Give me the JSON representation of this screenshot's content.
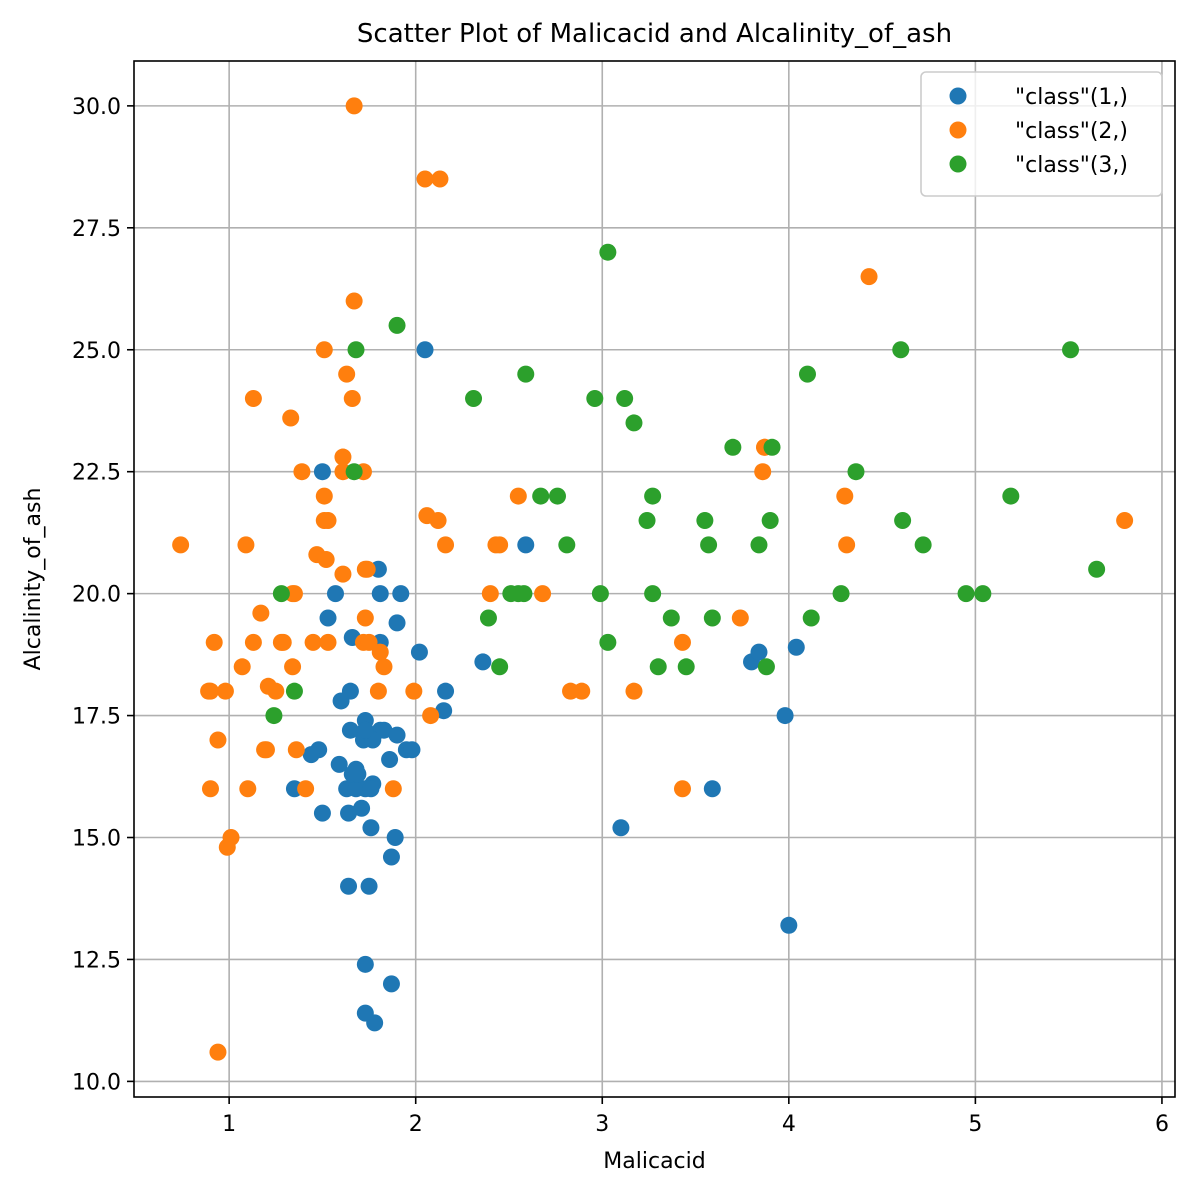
{
  "chart_data": {
    "type": "scatter",
    "title": "Scatter Plot of Malicacid and Alcalinity_of_ash",
    "xlabel": "Malicacid",
    "ylabel": "Alcalinity_of_ash",
    "xlim": [
      0.49,
      6.07
    ],
    "ylim": [
      9.68,
      30.92
    ],
    "xticks": [
      1,
      2,
      3,
      4,
      5,
      6
    ],
    "xtick_labels": [
      "1",
      "2",
      "3",
      "4",
      "5",
      "6"
    ],
    "yticks": [
      10.0,
      12.5,
      15.0,
      17.5,
      20.0,
      22.5,
      25.0,
      27.5,
      30.0
    ],
    "ytick_labels": [
      "10.0",
      "12.5",
      "15.0",
      "17.5",
      "20.0",
      "22.5",
      "25.0",
      "27.5",
      "30.0"
    ],
    "grid": true,
    "legend_position": "top-right",
    "series": [
      {
        "name": "\"class\"(1,)",
        "color": "#1f77b4",
        "points": [
          [
            1.71,
            15.6
          ],
          [
            1.78,
            11.2
          ],
          [
            2.36,
            18.6
          ],
          [
            1.95,
            16.8
          ],
          [
            2.59,
            21.0
          ],
          [
            1.76,
            15.2
          ],
          [
            1.87,
            14.6
          ],
          [
            2.15,
            17.6
          ],
          [
            1.64,
            14.0
          ],
          [
            1.35,
            16.0
          ],
          [
            2.16,
            18.0
          ],
          [
            1.48,
            16.8
          ],
          [
            1.73,
            16.0
          ],
          [
            1.73,
            11.4
          ],
          [
            1.87,
            12.0
          ],
          [
            1.81,
            17.2
          ],
          [
            1.92,
            20.0
          ],
          [
            1.57,
            20.0
          ],
          [
            1.59,
            16.5
          ],
          [
            3.1,
            15.2
          ],
          [
            1.63,
            16.0
          ],
          [
            3.8,
            18.6
          ],
          [
            1.86,
            16.6
          ],
          [
            1.6,
            17.8
          ],
          [
            1.81,
            20.0
          ],
          [
            2.05,
            25.0
          ],
          [
            1.77,
            16.1
          ],
          [
            1.72,
            17.0
          ],
          [
            1.9,
            19.4
          ],
          [
            1.68,
            16.0
          ],
          [
            1.5,
            15.5
          ],
          [
            1.66,
            16.3
          ],
          [
            1.83,
            17.2
          ],
          [
            1.53,
            19.5
          ],
          [
            1.8,
            20.5
          ],
          [
            1.81,
            19.0
          ],
          [
            1.64,
            15.5
          ],
          [
            1.65,
            18.0
          ],
          [
            1.5,
            22.5
          ],
          [
            3.59,
            16.0
          ],
          [
            1.73,
            12.4
          ],
          [
            1.65,
            17.2
          ],
          [
            3.98,
            17.5
          ],
          [
            1.77,
            17.0
          ],
          [
            4.04,
            18.9
          ],
          [
            3.84,
            18.8
          ],
          [
            1.89,
            15.0
          ],
          [
            1.68,
            16.4
          ],
          [
            1.75,
            14.0
          ],
          [
            1.73,
            17.4
          ],
          [
            1.9,
            17.1
          ],
          [
            1.73,
            17.2
          ],
          [
            1.66,
            19.1
          ],
          [
            1.76,
            16.0
          ],
          [
            1.98,
            16.8
          ],
          [
            2.02,
            18.8
          ],
          [
            1.44,
            16.7
          ],
          [
            1.69,
            16.3
          ],
          [
            4.0,
            13.2
          ]
        ]
      },
      {
        "name": "\"class\"(2,)",
        "color": "#ff7f0e",
        "points": [
          [
            0.94,
            10.6
          ],
          [
            1.1,
            16.0
          ],
          [
            1.36,
            16.8
          ],
          [
            1.25,
            18.0
          ],
          [
            1.13,
            19.0
          ],
          [
            1.45,
            19.0
          ],
          [
            1.21,
            18.1
          ],
          [
            1.01,
            15.0
          ],
          [
            1.17,
            19.6
          ],
          [
            0.94,
            17.0
          ],
          [
            1.19,
            16.8
          ],
          [
            1.61,
            20.4
          ],
          [
            1.51,
            25.0
          ],
          [
            1.66,
            24.0
          ],
          [
            1.67,
            30.0
          ],
          [
            1.09,
            21.0
          ],
          [
            1.88,
            16.0
          ],
          [
            0.9,
            18.0
          ],
          [
            2.89,
            18.0
          ],
          [
            0.99,
            14.8
          ],
          [
            3.87,
            23.0
          ],
          [
            0.92,
            19.0
          ],
          [
            1.81,
            18.8
          ],
          [
            1.13,
            24.0
          ],
          [
            3.86,
            22.5
          ],
          [
            0.89,
            18.0
          ],
          [
            0.98,
            18.0
          ],
          [
            1.61,
            22.8
          ],
          [
            1.67,
            26.0
          ],
          [
            2.06,
            21.6
          ],
          [
            1.33,
            23.6
          ],
          [
            1.83,
            18.5
          ],
          [
            1.51,
            22.0
          ],
          [
            1.53,
            21.5
          ],
          [
            1.8,
            18.0
          ],
          [
            1.28,
            19.0
          ],
          [
            1.07,
            18.5
          ],
          [
            3.43,
            19.0
          ],
          [
            1.29,
            19.0
          ],
          [
            1.63,
            24.5
          ],
          [
            3.74,
            19.5
          ],
          [
            2.43,
            21.0
          ],
          [
            2.68,
            20.0
          ],
          [
            0.74,
            21.0
          ],
          [
            1.39,
            22.5
          ],
          [
            1.51,
            21.5
          ],
          [
            1.47,
            20.8
          ],
          [
            1.73,
            20.5
          ],
          [
            1.61,
            22.5
          ],
          [
            1.34,
            20.0
          ],
          [
            1.41,
            16.0
          ],
          [
            1.73,
            19.5
          ],
          [
            2.55,
            22.0
          ],
          [
            3.43,
            16.0
          ],
          [
            1.72,
            22.5
          ],
          [
            2.08,
            17.5
          ],
          [
            3.17,
            18.0
          ],
          [
            1.72,
            19.0
          ],
          [
            2.13,
            28.5
          ],
          [
            1.52,
            20.7
          ],
          [
            1.34,
            18.5
          ],
          [
            0.9,
            16.0
          ],
          [
            2.05,
            28.5
          ],
          [
            1.53,
            19.0
          ],
          [
            2.16,
            21.0
          ],
          [
            2.83,
            18.0
          ],
          [
            1.99,
            18.0
          ],
          [
            1.35,
            20.0
          ],
          [
            3.87,
            23.0
          ],
          [
            1.74,
            20.5
          ],
          [
            4.43,
            26.5
          ],
          [
            4.3,
            22.0
          ],
          [
            2.4,
            20.0
          ],
          [
            2.12,
            21.5
          ],
          [
            1.2,
            16.8
          ],
          [
            2.45,
            21.0
          ],
          [
            5.8,
            21.5
          ],
          [
            1.75,
            19.0
          ],
          [
            4.31,
            21.0
          ]
        ]
      },
      {
        "name": "\"class\"(3,)",
        "color": "#2ca02c",
        "points": [
          [
            2.59,
            24.5
          ],
          [
            3.3,
            18.5
          ],
          [
            1.67,
            22.5
          ],
          [
            5.04,
            20.0
          ],
          [
            5.51,
            25.0
          ],
          [
            3.59,
            19.5
          ],
          [
            2.58,
            20.0
          ],
          [
            4.6,
            25.0
          ],
          [
            3.03,
            27.0
          ],
          [
            2.39,
            19.5
          ],
          [
            2.51,
            20.0
          ],
          [
            3.7,
            23.0
          ],
          [
            4.72,
            21.0
          ],
          [
            3.17,
            23.5
          ],
          [
            3.12,
            24.0
          ],
          [
            4.61,
            21.5
          ],
          [
            3.24,
            21.5
          ],
          [
            3.9,
            21.5
          ],
          [
            3.91,
            23.0
          ],
          [
            4.28,
            20.0
          ],
          [
            2.96,
            24.0
          ],
          [
            2.81,
            21.0
          ],
          [
            2.76,
            22.0
          ],
          [
            3.84,
            21.0
          ],
          [
            3.57,
            21.0
          ],
          [
            3.37,
            19.5
          ],
          [
            4.12,
            19.5
          ],
          [
            1.68,
            25.0
          ],
          [
            1.9,
            25.5
          ],
          [
            4.95,
            20.0
          ],
          [
            3.27,
            22.0
          ],
          [
            3.45,
            18.5
          ],
          [
            2.67,
            22.0
          ],
          [
            3.88,
            18.5
          ],
          [
            5.19,
            22.0
          ],
          [
            5.65,
            20.5
          ],
          [
            4.36,
            22.5
          ],
          [
            3.55,
            21.5
          ],
          [
            1.28,
            20.0
          ],
          [
            1.35,
            18.0
          ],
          [
            2.99,
            20.0
          ],
          [
            2.31,
            24.0
          ],
          [
            3.03,
            19.0
          ],
          [
            1.24,
            17.5
          ],
          [
            4.1,
            24.5
          ],
          [
            3.27,
            20.0
          ],
          [
            2.55,
            20.0
          ],
          [
            2.45,
            18.5
          ]
        ]
      }
    ]
  }
}
